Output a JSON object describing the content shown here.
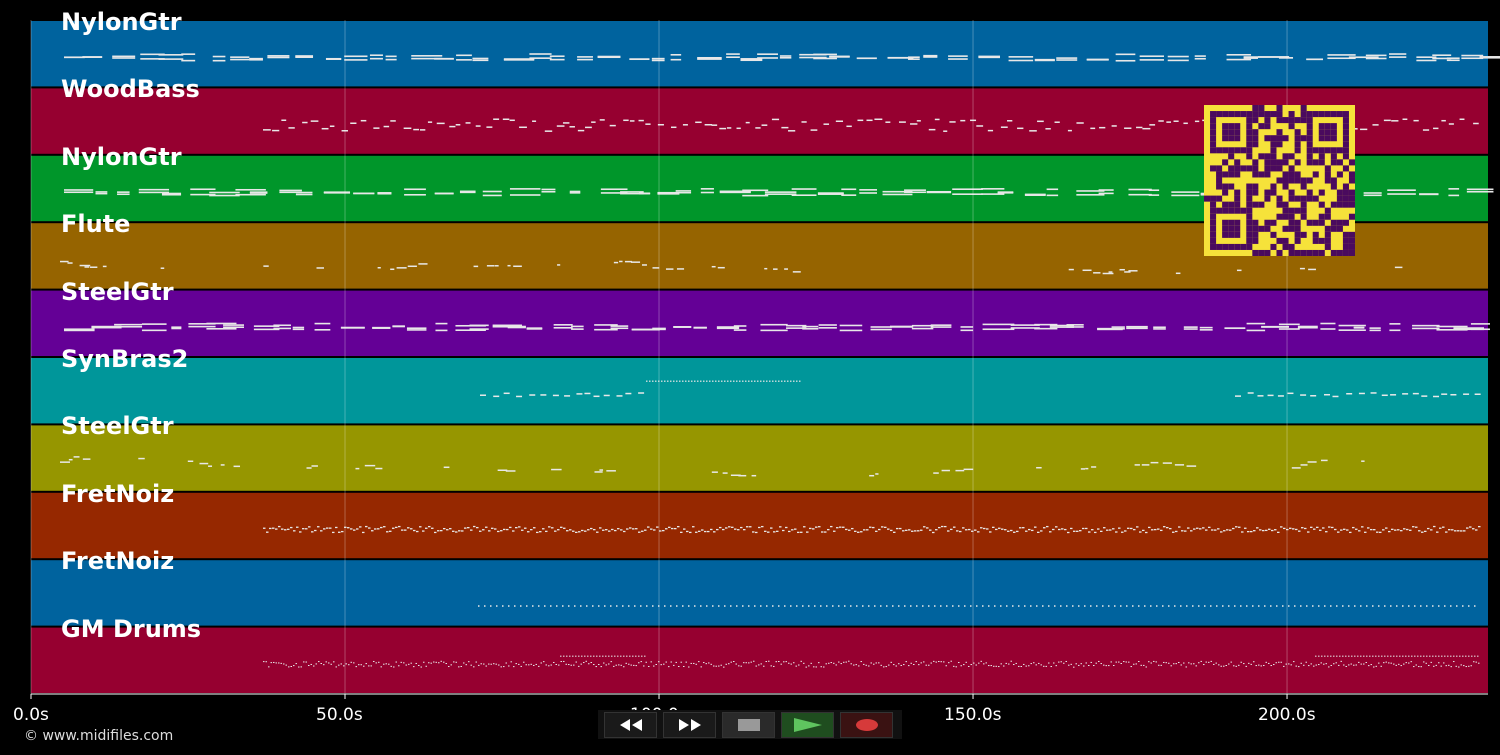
{
  "axis": {
    "x_unit": "s",
    "ticks": [
      {
        "value": 0,
        "label": "0.0s"
      },
      {
        "value": 50,
        "label": "50.0s"
      },
      {
        "value": 100,
        "label": "100.0s"
      },
      {
        "value": 150,
        "label": "150.0s"
      },
      {
        "value": 200,
        "label": "200.0s"
      }
    ],
    "xlim": [
      0,
      232
    ]
  },
  "tracks": [
    {
      "name": "NylonGtr",
      "color": "#00639e",
      "note_style": "sustained"
    },
    {
      "name": "WoodBass",
      "color": "#960030",
      "note_style": "dashed"
    },
    {
      "name": "NylonGtr",
      "color": "#00962a",
      "note_style": "sustained"
    },
    {
      "name": "Flute",
      "color": "#966400",
      "note_style": "melody"
    },
    {
      "name": "SteelGtr",
      "color": "#640096",
      "note_style": "sustained"
    },
    {
      "name": "SynBras2",
      "color": "#00969a",
      "note_style": "sparse"
    },
    {
      "name": "SteelGtr",
      "color": "#969600",
      "note_style": "melody"
    },
    {
      "name": "FretNoiz",
      "color": "#962800",
      "note_style": "dense"
    },
    {
      "name": "FretNoiz",
      "color": "#00639e",
      "note_style": "dotted"
    },
    {
      "name": "GM Drums",
      "color": "#960030",
      "note_style": "drums"
    }
  ],
  "footer": {
    "copyright": "© www.midifiles.com"
  },
  "controls": {
    "rewind": "rewind-icon",
    "forward": "fast-forward-icon",
    "stop": "stop-icon",
    "play": "play-icon",
    "record": "record-icon"
  },
  "qr_icon": "qr-code-icon"
}
